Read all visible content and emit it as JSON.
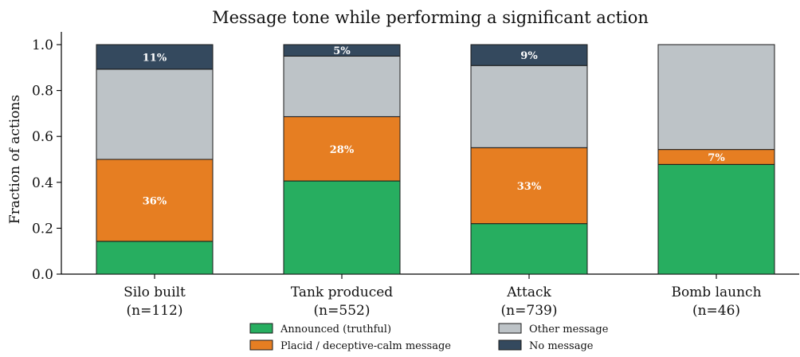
{
  "chart_data": {
    "type": "bar",
    "stacked": true,
    "title": "Message tone while performing a significant action",
    "ylabel": "Fraction of actions",
    "ylim": [
      0,
      1.0
    ],
    "yticks": [
      "0.0",
      "0.2",
      "0.4",
      "0.6",
      "0.8",
      "1.0"
    ],
    "categories": [
      {
        "name": "Silo built",
        "count": "(n=112)"
      },
      {
        "name": "Tank produced",
        "count": "(n=552)"
      },
      {
        "name": "Attack",
        "count": "(n=739)"
      },
      {
        "name": "Bomb launch",
        "count": "(n=46)"
      }
    ],
    "series": [
      {
        "name": "Announced (truthful)",
        "color": "#27ae60",
        "values": [
          0.143,
          0.406,
          0.22,
          0.478
        ],
        "labels": [
          "",
          "",
          "",
          ""
        ]
      },
      {
        "name": "Placid / deceptive-calm message",
        "color": "#e67e22",
        "values": [
          0.357,
          0.28,
          0.331,
          0.065
        ],
        "labels": [
          "36%",
          "28%",
          "33%",
          "7%"
        ]
      },
      {
        "name": "Other message",
        "color": "#bdc3c7",
        "values": [
          0.393,
          0.264,
          0.358,
          0.457
        ],
        "labels": [
          "",
          "",
          "",
          ""
        ]
      },
      {
        "name": "No message",
        "color": "#34495e",
        "values": [
          0.107,
          0.05,
          0.091,
          0.0
        ],
        "labels": [
          "11%",
          "5%",
          "9%",
          ""
        ]
      }
    ],
    "legend_position": "bottom",
    "grid": false
  }
}
